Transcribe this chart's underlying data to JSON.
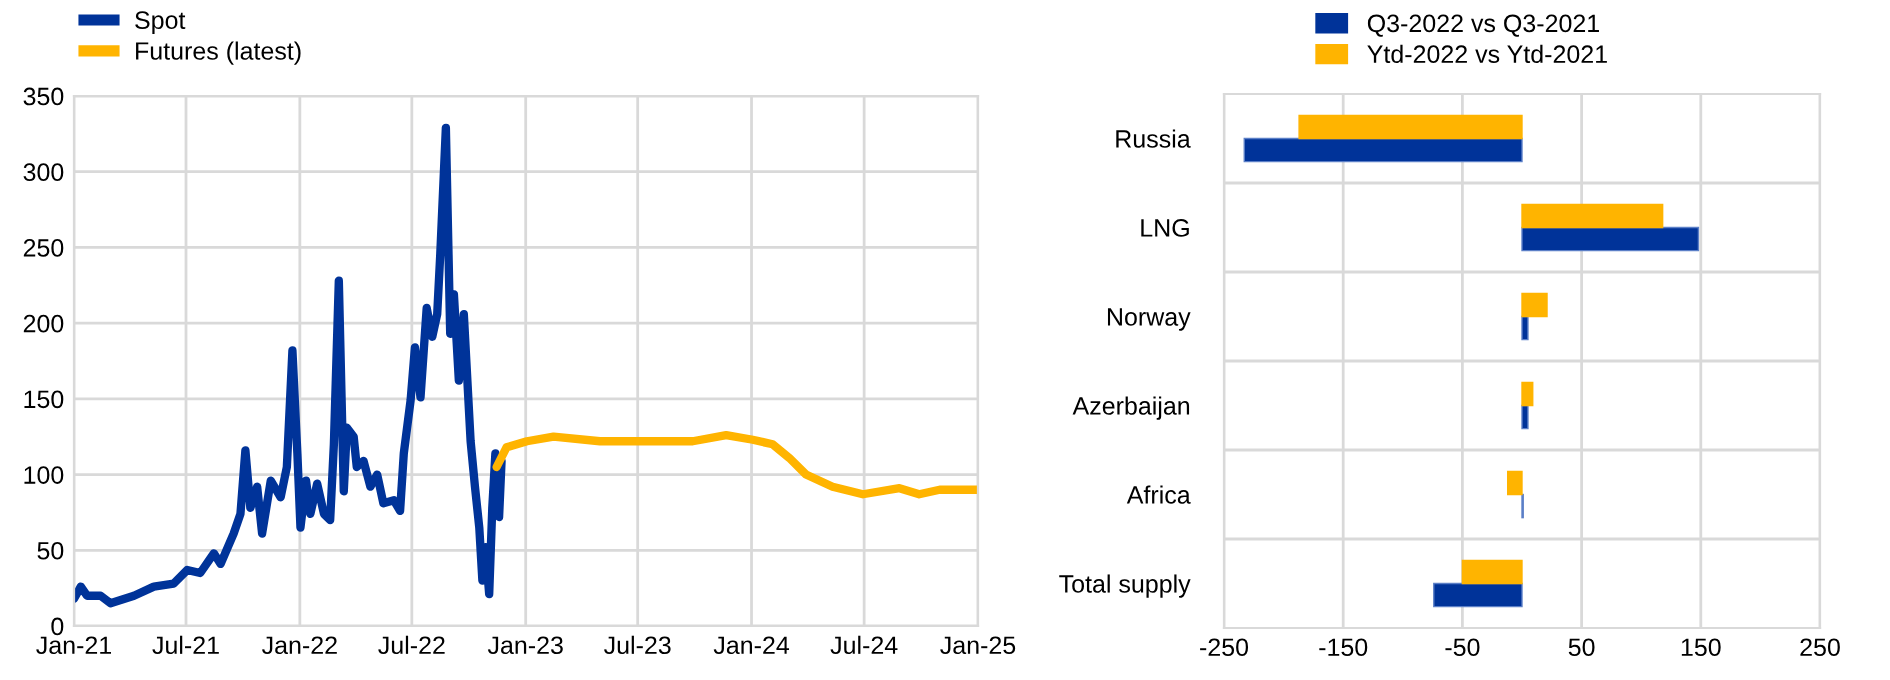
{
  "chart_data": [
    {
      "type": "line",
      "ylim": [
        0,
        350
      ],
      "yticks": [
        0,
        50,
        100,
        150,
        200,
        250,
        300,
        350
      ],
      "xlim": [
        "2021-01-01",
        "2025-01-01"
      ],
      "xticks": [
        {
          "value": "2021-01-01",
          "label": "Jan-21"
        },
        {
          "value": "2021-07-01",
          "label": "Jul-21"
        },
        {
          "value": "2022-01-01",
          "label": "Jan-22"
        },
        {
          "value": "2022-07-01",
          "label": "Jul-22"
        },
        {
          "value": "2023-01-01",
          "label": "Jan-23"
        },
        {
          "value": "2023-07-01",
          "label": "Jul-23"
        },
        {
          "value": "2024-01-01",
          "label": "Jan-24"
        },
        {
          "value": "2024-07-01",
          "label": "Jul-24"
        },
        {
          "value": "2025-01-01",
          "label": "Jan-25"
        }
      ],
      "grid": true,
      "legend": "top left",
      "series": [
        {
          "name": "Spot",
          "color": "#003399",
          "x": [
            "2021-01-01",
            "2021-01-12",
            "2021-01-22",
            "2021-02-13",
            "2021-03-01",
            "2021-04-08",
            "2021-05-10",
            "2021-06-11",
            "2021-07-03",
            "2021-07-24",
            "2021-08-15",
            "2021-08-26",
            "2021-09-16",
            "2021-09-27",
            "2021-10-05",
            "2021-10-13",
            "2021-10-24",
            "2021-11-01",
            "2021-11-15",
            "2021-12-01",
            "2021-12-11",
            "2021-12-20",
            "2021-12-28",
            "2022-01-02",
            "2022-01-11",
            "2022-01-18",
            "2022-01-29",
            "2022-02-09",
            "2022-02-19",
            "2022-02-25",
            "2022-03-05",
            "2022-03-13",
            "2022-03-18",
            "2022-03-29",
            "2022-04-03",
            "2022-04-14",
            "2022-04-25",
            "2022-05-06",
            "2022-05-16",
            "2022-06-02",
            "2022-06-12",
            "2022-06-18",
            "2022-06-29",
            "2022-07-06",
            "2022-07-15",
            "2022-07-25",
            "2022-08-03",
            "2022-08-11",
            "2022-08-16",
            "2022-08-25",
            "2022-09-01",
            "2022-09-07",
            "2022-09-15",
            "2022-09-23",
            "2022-10-04",
            "2022-10-11",
            "2022-10-18",
            "2022-10-23",
            "2022-10-28",
            "2022-11-03",
            "2022-11-08",
            "2022-11-13",
            "2022-11-19",
            "2022-11-23"
          ],
          "values": [
            18,
            26,
            20,
            20,
            15,
            20,
            26,
            28,
            37,
            35,
            48,
            41,
            61,
            74,
            116,
            78,
            92,
            61,
            96,
            85,
            105,
            182,
            114,
            65,
            96,
            74,
            94,
            74,
            70,
            120,
            228,
            89,
            131,
            125,
            105,
            109,
            92,
            100,
            81,
            83,
            76,
            114,
            149,
            184,
            151,
            210,
            191,
            206,
            246,
            329,
            193,
            219,
            162,
            206,
            122,
            92,
            65,
            30,
            52,
            21,
            78,
            114,
            72,
            109
          ]
        },
        {
          "name": "Futures (latest)",
          "color": "#ffb400",
          "x": [
            "2022-11-15",
            "2022-12-01",
            "2023-01-03",
            "2023-02-15",
            "2023-05-01",
            "2023-07-05",
            "2023-09-28",
            "2023-11-21",
            "2024-01-03",
            "2024-02-04",
            "2024-03-02",
            "2024-03-29",
            "2024-05-11",
            "2024-06-29",
            "2024-08-27",
            "2024-09-28",
            "2024-10-31",
            "2025-01-01"
          ],
          "values": [
            105,
            118,
            122,
            125,
            122,
            122,
            122,
            126,
            123,
            120,
            111,
            100,
            92,
            87,
            91,
            87,
            90,
            90
          ]
        }
      ]
    },
    {
      "type": "bar",
      "orientation": "horizontal",
      "categories": [
        "Russia",
        "LNG",
        "Norway",
        "Azerbaijan",
        "Africa",
        "Total supply"
      ],
      "xlim": [
        -250,
        250
      ],
      "xticks": [
        -250,
        -150,
        -50,
        50,
        150,
        250
      ],
      "grid": true,
      "legend": "top",
      "series": [
        {
          "name": "Q3-2022 vs Q3-2021",
          "color": "#003399",
          "values": [
            -233,
            148,
            5,
            5,
            1,
            -74
          ]
        },
        {
          "name": "Ytd-2022 vs Ytd-2021",
          "color": "#ffb400",
          "values": [
            -187,
            118,
            21,
            9,
            -12,
            -50
          ]
        }
      ]
    }
  ]
}
